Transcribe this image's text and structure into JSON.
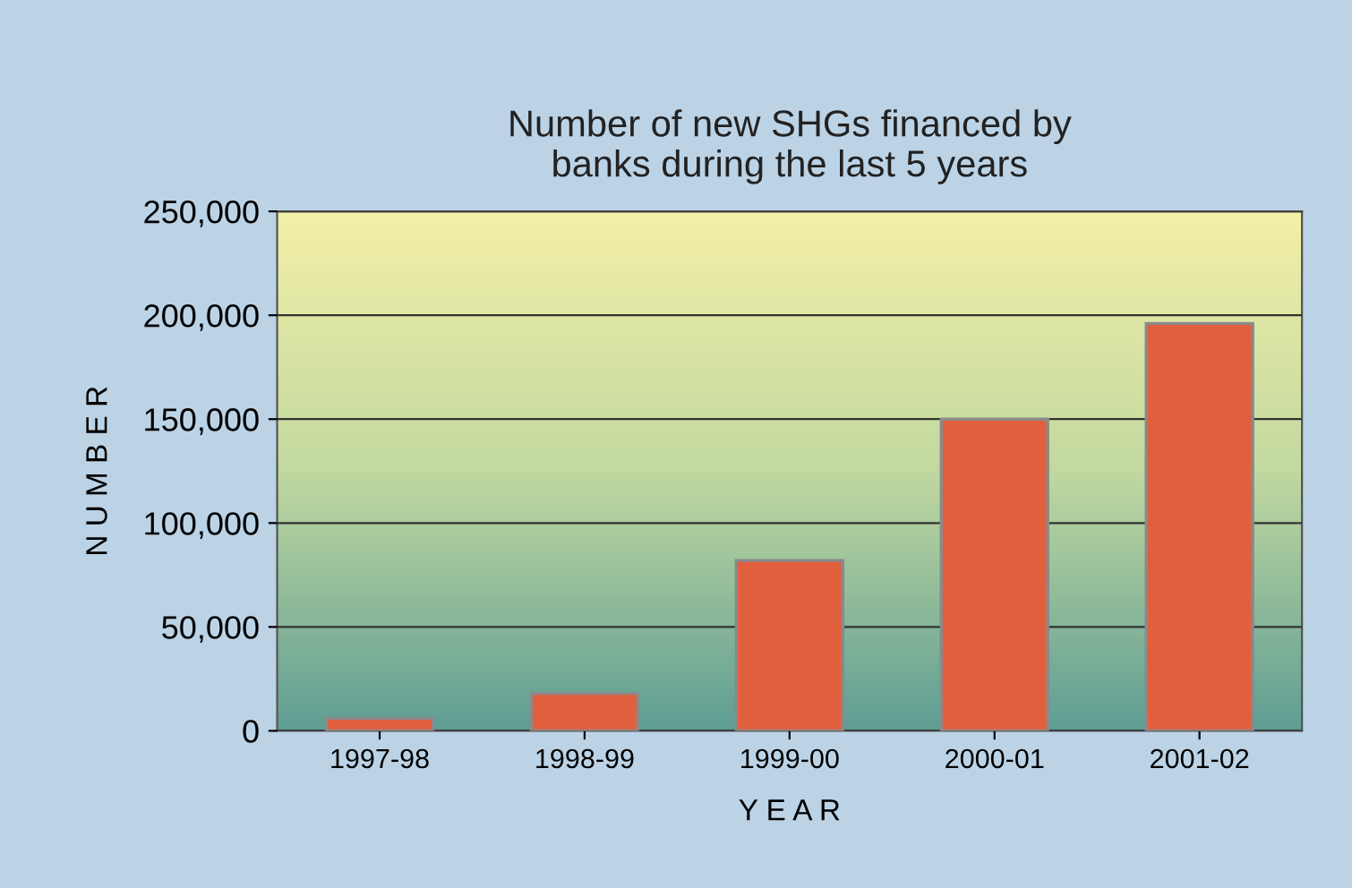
{
  "chart_data": {
    "type": "bar",
    "title": "Number of new SHGs financed by\nbanks during the last 5 years",
    "xlabel": "Y E A R",
    "ylabel": "N U M B E R",
    "categories": [
      "1997-98",
      "1998-99",
      "1999-00",
      "2000-01",
      "2001-02"
    ],
    "values": [
      6000,
      18000,
      82000,
      150000,
      196000
    ],
    "color": "#e0603e",
    "ylim": [
      0,
      250000
    ],
    "yticks": [
      {
        "value": 0,
        "label": "0"
      },
      {
        "value": 50000,
        "label": "50,000"
      },
      {
        "value": 100000,
        "label": "100,000"
      },
      {
        "value": 150000,
        "label": "150,000"
      },
      {
        "value": 200000,
        "label": "200,000"
      },
      {
        "value": 250000,
        "label": "250,000"
      }
    ],
    "grid": "y",
    "legend": false
  }
}
